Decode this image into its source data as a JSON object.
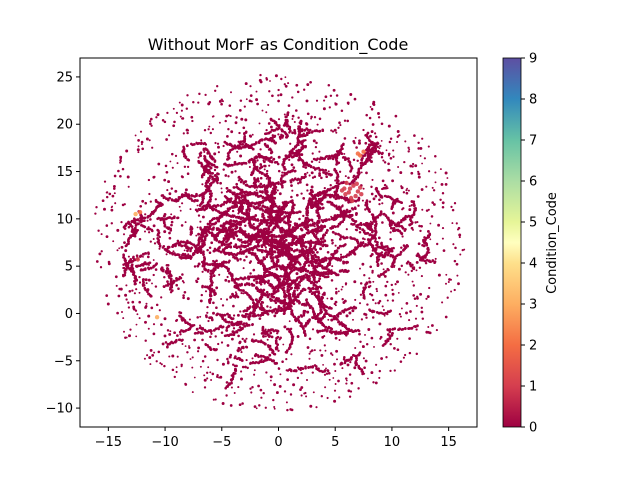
{
  "chart_data": {
    "type": "scatter",
    "title": "Without MorF as Condition_Code",
    "xlabel": "",
    "ylabel": "",
    "xlim": [
      -17.5,
      17.5
    ],
    "ylim": [
      -12,
      27
    ],
    "xticks": [
      -15,
      -10,
      -5,
      0,
      5,
      10,
      15
    ],
    "xtick_labels": [
      "−15",
      "−10",
      "−5",
      "0",
      "5",
      "10",
      "15"
    ],
    "yticks": [
      -10,
      -5,
      0,
      5,
      10,
      15,
      20,
      25
    ],
    "ytick_labels": [
      "−10",
      "−5",
      "0",
      "5",
      "10",
      "15",
      "20",
      "25"
    ],
    "grid": false,
    "colorbar": {
      "label": "Condition_Code",
      "range": [
        0,
        9
      ],
      "ticks": [
        0,
        1,
        2,
        3,
        4,
        5,
        6,
        7,
        8,
        9
      ],
      "tick_labels": [
        "0",
        "1",
        "2",
        "3",
        "4",
        "5",
        "6",
        "7",
        "8",
        "9"
      ],
      "colormap": "Spectral"
    },
    "colors": {
      "code_0": "#9e0142",
      "code_1": "#d53e4f",
      "code_2": "#f46d43",
      "code_3": "#fdae61",
      "code_4": "#fee08b",
      "code_5": "#e6f598",
      "code_6": "#abdda4",
      "code_7": "#66c2a5",
      "code_8": "#3288bd",
      "code_9": "#5e4fa2"
    },
    "point_cloud": {
      "center": [
        0,
        7.5
      ],
      "radius": 16.5,
      "dominant_condition_code": 0
    },
    "series": [
      {
        "condition_code": 1,
        "points": [
          [
            5.8,
            13.2
          ],
          [
            6.2,
            12.8
          ],
          [
            6.6,
            13.5
          ],
          [
            7.0,
            12.9
          ],
          [
            6.4,
            12.2
          ],
          [
            5.9,
            12.6
          ],
          [
            6.8,
            12.4
          ],
          [
            7.2,
            13.3
          ],
          [
            6.0,
            13.8
          ],
          [
            6.5,
            11.9
          ],
          [
            5.6,
            13.0
          ],
          [
            7.3,
            12.6
          ],
          [
            6.3,
            13.2
          ],
          [
            6.9,
            13.7
          ],
          [
            -12.4,
            5.7
          ]
        ]
      },
      {
        "condition_code": 2,
        "points": [
          [
            7.2,
            16.7
          ],
          [
            7.5,
            17.1
          ],
          [
            7.0,
            16.9
          ],
          [
            -12.2,
            10.7
          ]
        ]
      },
      {
        "condition_code": 3,
        "points": [
          [
            -12.6,
            10.5
          ],
          [
            -10.7,
            -0.4
          ]
        ]
      }
    ]
  }
}
